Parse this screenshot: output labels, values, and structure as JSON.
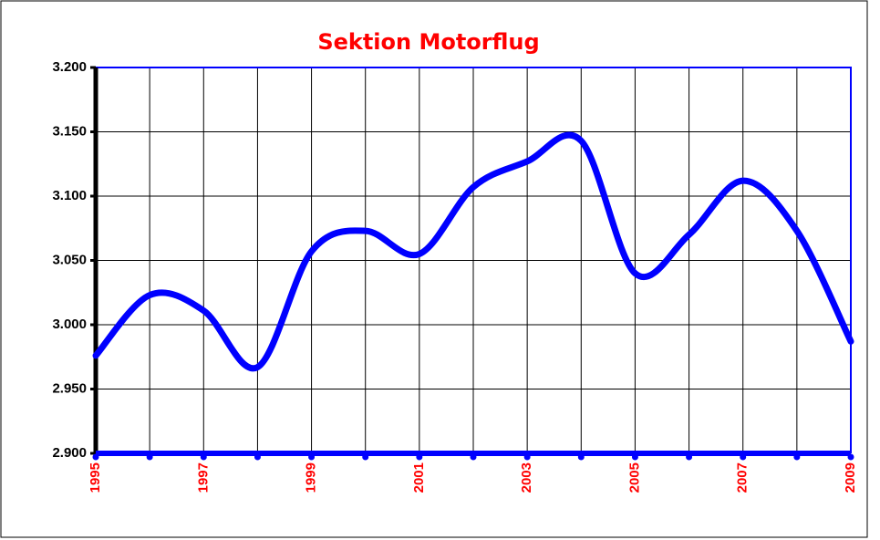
{
  "chart_data": {
    "type": "line",
    "title": "Sektion Motorflug",
    "x": [
      1995,
      1996,
      1997,
      1998,
      1999,
      2000,
      2001,
      2002,
      2003,
      2004,
      2005,
      2006,
      2007,
      2008,
      2009
    ],
    "series": [
      {
        "name": "Sektion Motorflug",
        "color": "#0000ff",
        "values": [
          2976,
          3023,
          3011,
          2967,
          3057,
          3073,
          3055,
          3107,
          3127,
          3143,
          3040,
          3070,
          3112,
          3073,
          2987
        ]
      }
    ],
    "xlim": [
      1995,
      2009
    ],
    "xticks": [
      1995,
      1997,
      1999,
      2001,
      2003,
      2005,
      2007,
      2009
    ],
    "ylim": [
      2900,
      3200
    ],
    "yticks": [
      {
        "value": 2900,
        "label": "2.900"
      },
      {
        "value": 2950,
        "label": "2.950"
      },
      {
        "value": 3000,
        "label": "3.000"
      },
      {
        "value": 3050,
        "label": "3.050"
      },
      {
        "value": 3100,
        "label": "3.100"
      },
      {
        "value": 3150,
        "label": "3.150"
      },
      {
        "value": 3200,
        "label": "3.200"
      }
    ],
    "grid": true
  }
}
